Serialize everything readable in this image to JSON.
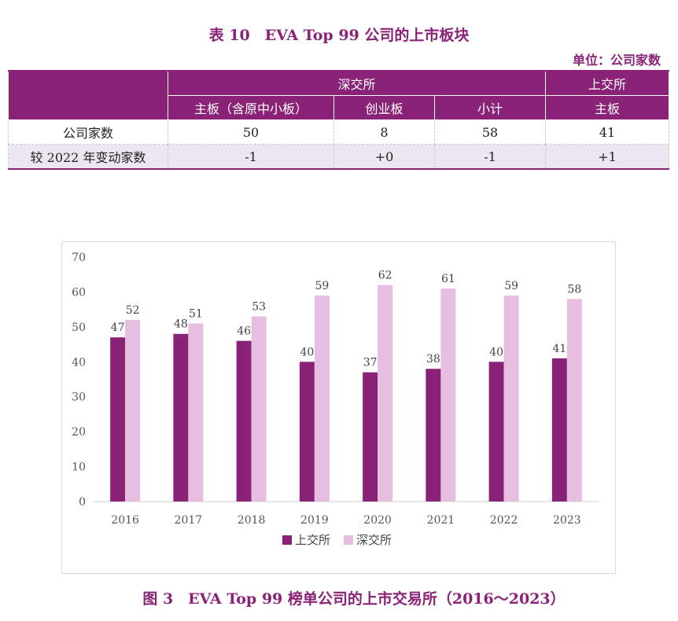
{
  "table_title": "表 10　EVA Top 99 公司的上市板块",
  "unit_label": "单位：公司家数",
  "table": {
    "header_row1": [
      "",
      "深交所",
      "上交所"
    ],
    "header_row2": [
      "主板（含原中小板）",
      "创业板",
      "小计",
      "主板"
    ],
    "rows": [
      {
        "label": "公司家数",
        "values": [
          "50",
          "8",
          "58",
          "41"
        ]
      },
      {
        "label": "较 2022 年变动家数",
        "values": [
          "-1",
          "+0",
          "-1",
          "+1"
        ]
      }
    ]
  },
  "colors": {
    "accent": "#8a2378",
    "sse_bar": "#8a2378",
    "szse_bar": "#e6bfe0",
    "row_shade": "#ece6f1"
  },
  "chart_data": {
    "type": "bar",
    "categories": [
      "2016",
      "2017",
      "2018",
      "2019",
      "2020",
      "2021",
      "2022",
      "2023"
    ],
    "series": [
      {
        "name": "上交所",
        "values": [
          47,
          48,
          46,
          40,
          37,
          38,
          40,
          41
        ]
      },
      {
        "name": "深交所",
        "values": [
          52,
          51,
          53,
          59,
          62,
          61,
          59,
          58
        ]
      }
    ],
    "ylim": [
      0,
      70
    ],
    "yticks": [
      0,
      10,
      20,
      30,
      40,
      50,
      60,
      70
    ],
    "grid": false,
    "legend_position": "bottom",
    "data_labels": true
  },
  "figure_caption": "图 3　EVA Top 99 榜单公司的上市交易所（2016～2023）"
}
